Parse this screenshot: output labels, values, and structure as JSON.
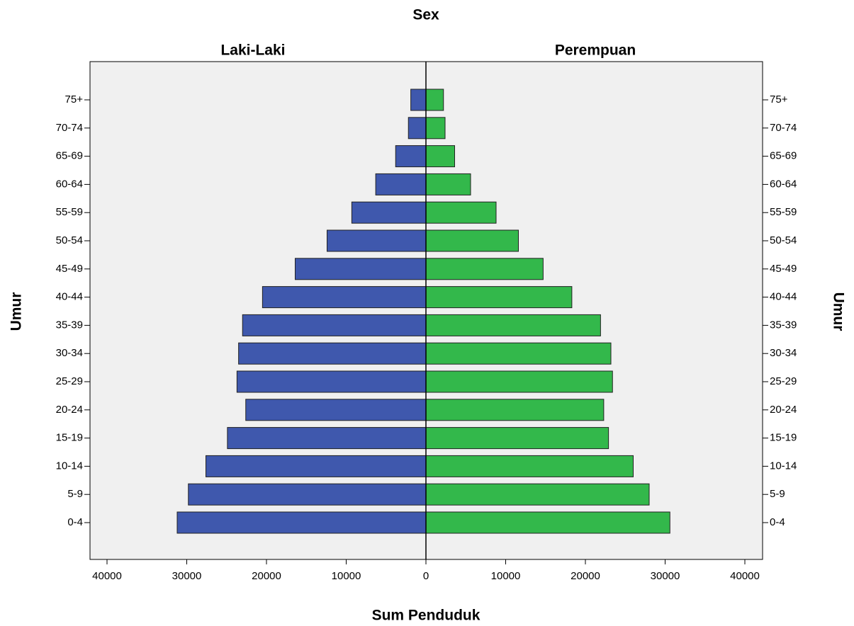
{
  "chart_data": {
    "type": "pyramid",
    "title": "Sex",
    "categories": [
      "0-4",
      "5-9",
      "10-14",
      "15-19",
      "20-24",
      "25-29",
      "30-34",
      "35-39",
      "40-44",
      "45-49",
      "50-54",
      "55-59",
      "60-64",
      "65-69",
      "70-74",
      "75+"
    ],
    "series": [
      {
        "name": "Laki-Laki",
        "color": "#3f58ad",
        "values": [
          31200,
          29800,
          27600,
          24900,
          22600,
          23700,
          23500,
          23000,
          20500,
          16400,
          12400,
          9300,
          6300,
          3800,
          2200,
          1900
        ]
      },
      {
        "name": "Perempuan",
        "color": "#33b84b",
        "values": [
          30600,
          28000,
          26000,
          22900,
          22300,
          23400,
          23200,
          21900,
          18300,
          14700,
          11600,
          8800,
          5600,
          3600,
          2400,
          2200
        ]
      }
    ],
    "x_label": "Sum Penduduk",
    "y_label": "Umur",
    "xlim": [
      0,
      40000
    ],
    "xticks": [
      0,
      10000,
      20000,
      30000,
      40000
    ]
  }
}
